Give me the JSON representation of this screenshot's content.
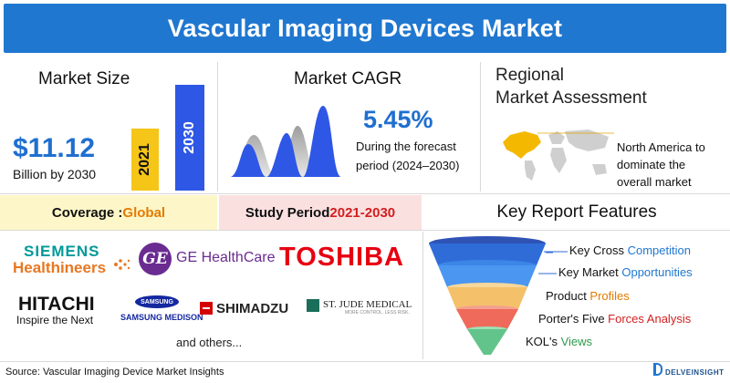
{
  "header": {
    "title": "Vascular Imaging Devices Market"
  },
  "market_size": {
    "title": "Market Size",
    "value": "$11.12",
    "subtitle": "Billion by 2030",
    "bars": [
      {
        "label": "2021",
        "color": "#f5c518"
      },
      {
        "label": "2030",
        "color": "#2e57e6"
      }
    ]
  },
  "cagr": {
    "title": "Market CAGR",
    "value": "5.45%",
    "line1": "During the forecast",
    "line2": "period (2024–2030)"
  },
  "regional": {
    "title_line1": "Regional",
    "title_line2": "Market Assessment",
    "note_line1": "North America to",
    "note_line2": "dominate the",
    "note_line3": "overall market"
  },
  "strip": {
    "coverage_label": "Coverage : ",
    "coverage_value": "Global",
    "study_label": "Study Period ",
    "study_value": "2021-2030",
    "key_features": "Key Report Features"
  },
  "logos": {
    "siemens_line1": "SIEMENS",
    "siemens_line2": "Healthineers",
    "ge_mark": "GE",
    "ge_text": "GE HealthCare",
    "toshiba": "TOSHIBA",
    "hitachi": "HITACHI",
    "hitachi_sub": "Inspire the Next",
    "samsung": "SAMSUNG",
    "samsung_sub": "SAMSUNG MEDISON",
    "shimadzu": "SHIMADZU",
    "st_jude": "ST. JUDE MEDICAL",
    "st_jude_sub": "MORE CONTROL. LESS RISK.",
    "others": "and others..."
  },
  "features": [
    {
      "prefix": "Key Cross ",
      "highlight": "Competition",
      "color": "#1f77d0"
    },
    {
      "prefix": "Key Market ",
      "highlight": "Opportunities",
      "color": "#1f77d0"
    },
    {
      "prefix": "Product ",
      "highlight": "Profiles",
      "color": "#e57b00"
    },
    {
      "prefix": "Porter's Five ",
      "highlight": "Forces Analysis",
      "color": "#d21f1f"
    },
    {
      "prefix": "KOL's ",
      "highlight": "Views",
      "color": "#2e9a4e"
    }
  ],
  "footer": {
    "source": "Source: Vascular Imaging Device Market Insights",
    "brand": "DELVEINSIGHT"
  }
}
